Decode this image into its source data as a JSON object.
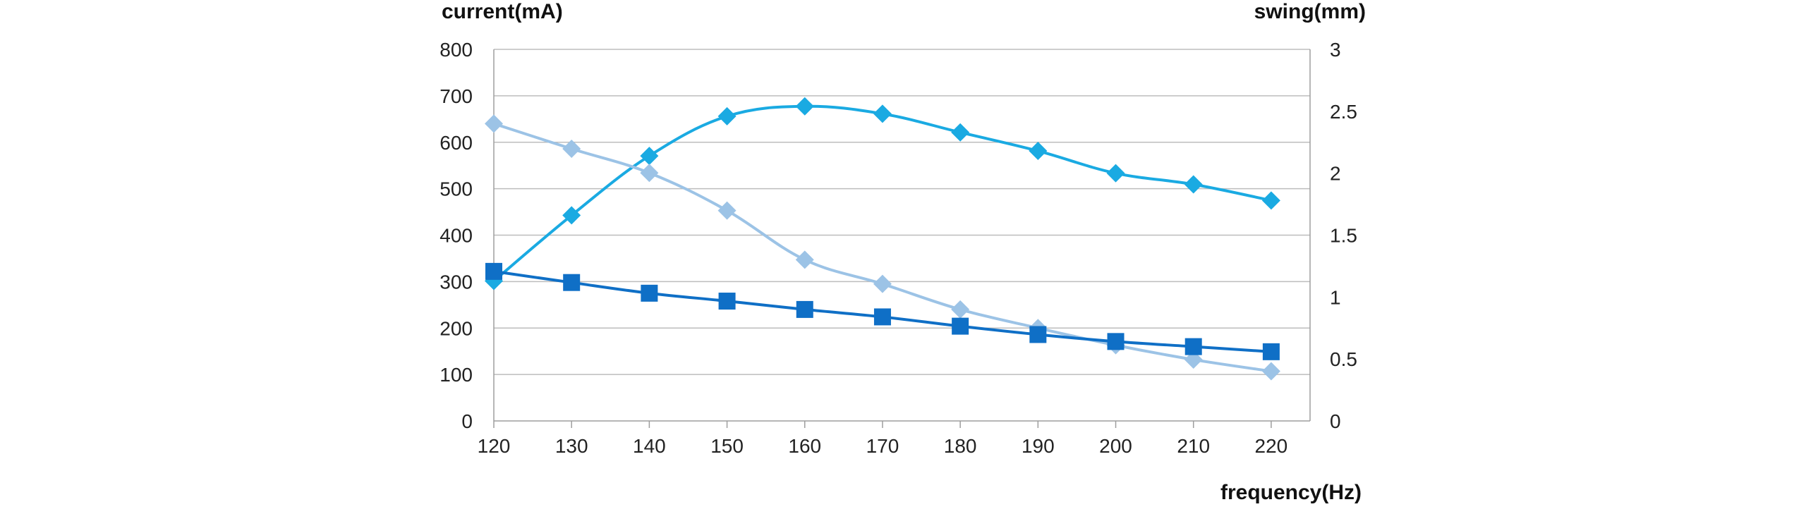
{
  "chart_data": {
    "type": "line",
    "title": "",
    "xlabel": "frequency(Hz)",
    "ylabel_left": "current(mA)",
    "ylabel_right": "swing(mm)",
    "x": [
      120,
      130,
      140,
      150,
      160,
      170,
      180,
      190,
      200,
      210,
      220
    ],
    "xlim": [
      120,
      225
    ],
    "ylim_left": [
      0,
      800
    ],
    "ylim_right": [
      0,
      3
    ],
    "yticks_left": [
      0,
      100,
      200,
      300,
      400,
      500,
      600,
      700,
      800
    ],
    "yticks_right": [
      0,
      0.5,
      1,
      1.5,
      2,
      2.5,
      3
    ],
    "grid": true,
    "legend": "none",
    "series": [
      {
        "axis": "left",
        "marker": "diamond",
        "color": "#1aaae2",
        "values": [
          1.13,
          1.66,
          2.14,
          2.46,
          2.54,
          2.48,
          2.33,
          2.18,
          2.0,
          1.91,
          1.78
        ]
      },
      {
        "axis": "left",
        "marker": "diamond",
        "color": "#9cc3e6",
        "values": [
          640,
          586,
          534,
          453,
          347,
          295,
          240,
          200,
          163,
          132,
          107
        ]
      },
      {
        "axis": "left",
        "marker": "square",
        "color": "#0f6fc6",
        "values": [
          322,
          298,
          275,
          258,
          240,
          224,
          204,
          186,
          171,
          160,
          149
        ]
      }
    ]
  }
}
